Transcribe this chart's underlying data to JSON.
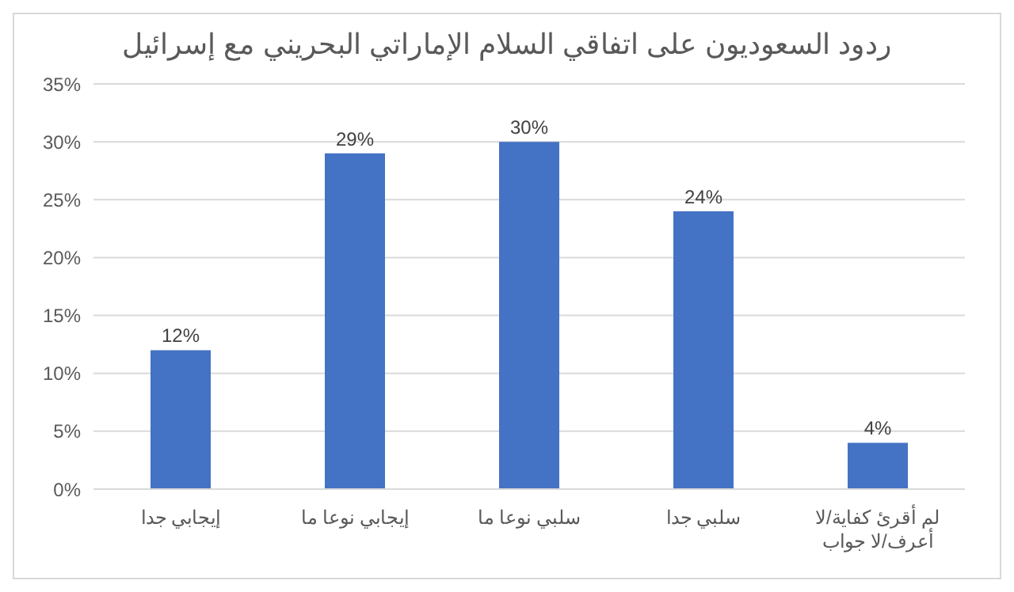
{
  "chart_data": {
    "type": "bar",
    "title": "ردود السعوديون على اتفاقي السلام الإماراتي البحريني مع إسرائيل",
    "categories": [
      "إيجابي جدا",
      "إيجابي نوعا ما",
      "سلبي نوعا ما",
      "سلبي جدا",
      "لم أقرئ كفاية/لا أعرف/لا جواب"
    ],
    "values": [
      12,
      29,
      30,
      24,
      4
    ],
    "color": "#4472c4",
    "value_labels": [
      "12%",
      "29%",
      "30%",
      "24%",
      "4%"
    ],
    "ylim": [
      0,
      35
    ],
    "yticks": [
      {
        "value": 0,
        "label": "0%"
      },
      {
        "value": 5,
        "label": "5%"
      },
      {
        "value": 10,
        "label": "10%"
      },
      {
        "value": 15,
        "label": "15%"
      },
      {
        "value": 20,
        "label": "20%"
      },
      {
        "value": 25,
        "label": "25%"
      },
      {
        "value": 30,
        "label": "30%"
      },
      {
        "value": 35,
        "label": "35%"
      }
    ],
    "grid": "y",
    "legend": false
  }
}
